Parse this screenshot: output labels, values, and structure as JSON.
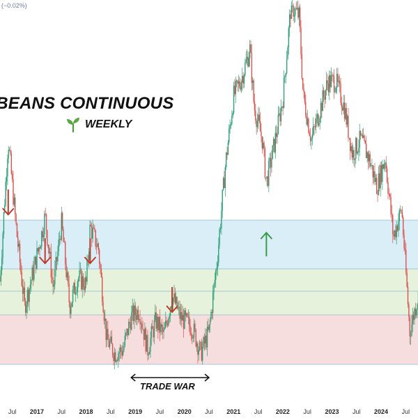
{
  "header": {
    "change_readout": "(−0.02%)"
  },
  "chart_data": {
    "type": "candlestick",
    "title": "YBEANS CONTINUOUS",
    "subtitle": "WEEKLY",
    "subtitle_icon": "sprout-icon",
    "x_range": [
      "2016-04",
      "2024-10"
    ],
    "y_range_relative": [
      0,
      1
    ],
    "colors": {
      "up": "#2e9e78",
      "down": "#d9534f",
      "arrow_down": "#c0392b",
      "arrow_up": "#3a9b4a",
      "zone_blue": "#d9eef6",
      "zone_green": "#e6f2dc",
      "zone_red": "#f7dede"
    },
    "x_ticks": [
      {
        "label": "Jul",
        "date": "2016-07",
        "year": false
      },
      {
        "label": "2017",
        "date": "2017-01",
        "year": true
      },
      {
        "label": "Jul",
        "date": "2017-07",
        "year": false
      },
      {
        "label": "2018",
        "date": "2018-01",
        "year": true
      },
      {
        "label": "Jul",
        "date": "2018-07",
        "year": false
      },
      {
        "label": "2019",
        "date": "2019-01",
        "year": true
      },
      {
        "label": "Jul",
        "date": "2019-07",
        "year": false
      },
      {
        "label": "2020",
        "date": "2020-01",
        "year": true
      },
      {
        "label": "Jul",
        "date": "2020-07",
        "year": false
      },
      {
        "label": "2021",
        "date": "2021-01",
        "year": true
      },
      {
        "label": "Jul",
        "date": "2021-07",
        "year": false
      },
      {
        "label": "2022",
        "date": "2022-01",
        "year": true
      },
      {
        "label": "Jul",
        "date": "2022-07",
        "year": false
      },
      {
        "label": "2023",
        "date": "2023-01",
        "year": true
      },
      {
        "label": "Jul",
        "date": "2023-07",
        "year": false
      },
      {
        "label": "2024",
        "date": "2024-01",
        "year": true
      },
      {
        "label": "Jul",
        "date": "2024-07",
        "year": false
      }
    ],
    "zones": [
      {
        "name": "upper resistance zone",
        "color": "zone_blue"
      },
      {
        "name": "middle zone",
        "color": "zone_green"
      },
      {
        "name": "lower support zone",
        "color": "zone_red"
      }
    ],
    "annotations": [
      {
        "type": "arrow-down",
        "date": "2016-06"
      },
      {
        "type": "arrow-down",
        "date": "2017-03"
      },
      {
        "type": "arrow-down",
        "date": "2018-02"
      },
      {
        "type": "arrow-down",
        "date": "2019-10"
      },
      {
        "type": "arrow-up",
        "date": "2021-09"
      },
      {
        "type": "range",
        "label": "TRADE WAR",
        "from": "2018-12",
        "to": "2020-07"
      }
    ],
    "price_path_relative": [
      [
        "2016-04",
        0.24
      ],
      [
        "2016-06",
        0.63
      ],
      [
        "2016-08",
        0.38
      ],
      [
        "2016-10",
        0.17
      ],
      [
        "2016-12",
        0.26
      ],
      [
        "2017-02",
        0.36
      ],
      [
        "2017-03",
        0.42
      ],
      [
        "2017-05",
        0.22
      ],
      [
        "2017-07",
        0.4
      ],
      [
        "2017-09",
        0.17
      ],
      [
        "2017-11",
        0.25
      ],
      [
        "2018-01",
        0.23
      ],
      [
        "2018-02",
        0.39
      ],
      [
        "2018-04",
        0.33
      ],
      [
        "2018-06",
        0.08
      ],
      [
        "2018-08",
        0.04
      ],
      [
        "2018-10",
        0.05
      ],
      [
        "2018-12",
        0.14
      ],
      [
        "2019-02",
        0.16
      ],
      [
        "2019-04",
        0.05
      ],
      [
        "2019-06",
        0.13
      ],
      [
        "2019-08",
        0.09
      ],
      [
        "2019-10",
        0.2
      ],
      [
        "2019-12",
        0.14
      ],
      [
        "2020-03",
        0.11
      ],
      [
        "2020-05",
        0.04
      ],
      [
        "2020-07",
        0.1
      ],
      [
        "2020-09",
        0.3
      ],
      [
        "2020-11",
        0.56
      ],
      [
        "2021-01",
        0.75
      ],
      [
        "2021-03",
        0.8
      ],
      [
        "2021-05",
        0.88
      ],
      [
        "2021-06",
        0.72
      ],
      [
        "2021-08",
        0.63
      ],
      [
        "2021-09",
        0.51
      ],
      [
        "2021-11",
        0.62
      ],
      [
        "2022-01",
        0.74
      ],
      [
        "2022-03",
        1.0
      ],
      [
        "2022-05",
        0.97
      ],
      [
        "2022-06",
        0.75
      ],
      [
        "2022-08",
        0.63
      ],
      [
        "2022-10",
        0.71
      ],
      [
        "2022-12",
        0.79
      ],
      [
        "2023-02",
        0.79
      ],
      [
        "2023-04",
        0.72
      ],
      [
        "2023-06",
        0.59
      ],
      [
        "2023-08",
        0.63
      ],
      [
        "2023-10",
        0.58
      ],
      [
        "2023-12",
        0.5
      ],
      [
        "2024-02",
        0.58
      ],
      [
        "2024-04",
        0.36
      ],
      [
        "2024-06",
        0.44
      ],
      [
        "2024-08",
        0.1
      ],
      [
        "2024-10",
        0.2
      ]
    ],
    "range_label_text": "TRADE WAR"
  }
}
